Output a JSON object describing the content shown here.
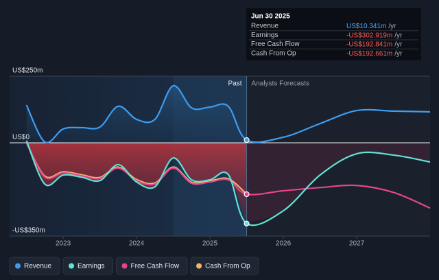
{
  "chart_data": {
    "type": "line",
    "x": [
      2022.5,
      2022.75,
      2023.0,
      2023.25,
      2023.5,
      2023.75,
      2024.0,
      2024.25,
      2024.5,
      2024.75,
      2025.0,
      2025.25,
      2025.5,
      2026.0,
      2026.5,
      2027.0,
      2027.5,
      2028.0
    ],
    "xlim": [
      2022.27,
      2028.0
    ],
    "xticks": [
      2023,
      2024,
      2025,
      2026,
      2027
    ],
    "ylim": [
      -350,
      250
    ],
    "yticks": [
      {
        "value": -350,
        "label": "-US$350m"
      },
      {
        "value": 0,
        "label": "US$0"
      },
      {
        "value": 250,
        "label": "US$250m"
      }
    ],
    "annotations": {
      "past": "Past",
      "forecast": "Analysts Forecasts"
    },
    "tooltip_title": "Jun 30 2025",
    "tooltip_suffix": "/yr",
    "series": [
      {
        "name": "Revenue",
        "color": "#3d9df0",
        "values": [
          142,
          3,
          52,
          57,
          59,
          137,
          88,
          88,
          214,
          131,
          134,
          137,
          10.341,
          21,
          72,
          121,
          119,
          116
        ],
        "value_labels": [
          null,
          null,
          null,
          null,
          null,
          null,
          null,
          null,
          null,
          null,
          null,
          null,
          "US$10.341m",
          null,
          null,
          null,
          null,
          null
        ]
      },
      {
        "name": "Earnings",
        "color": "#5fe3d6",
        "values": [
          8,
          -155,
          -121,
          -129,
          -142,
          -82,
          -147,
          -165,
          -57,
          -139,
          -139,
          -119,
          -302.919,
          -255,
          -121,
          -41,
          -46,
          -72
        ],
        "value_labels": [
          null,
          null,
          null,
          null,
          null,
          null,
          null,
          null,
          null,
          null,
          null,
          null,
          "-US$302.919m",
          null,
          null,
          null,
          null,
          null
        ]
      },
      {
        "name": "Free Cash Flow",
        "color": "#e4458c",
        "values": [
          0,
          -129,
          -113,
          -124,
          -134,
          -95,
          -142,
          -155,
          -95,
          -152,
          -147,
          -139,
          -192.841,
          -180,
          -168,
          -160,
          -186,
          -245
        ],
        "value_labels": [
          null,
          null,
          null,
          null,
          null,
          null,
          null,
          null,
          null,
          null,
          null,
          null,
          "-US$192.841m",
          null,
          null,
          null,
          null,
          null
        ]
      },
      {
        "name": "Cash From Op",
        "color": "#f4b46a",
        "values": [
          0,
          -125,
          -109,
          -120,
          -130,
          -91,
          -138,
          -151,
          -91,
          -148,
          -143,
          -135,
          -192.661,
          null,
          null,
          null,
          null,
          null
        ],
        "value_labels": [
          null,
          null,
          null,
          null,
          null,
          null,
          null,
          null,
          null,
          null,
          null,
          null,
          "-US$192.661m",
          null,
          null,
          null,
          null,
          null
        ]
      }
    ]
  }
}
